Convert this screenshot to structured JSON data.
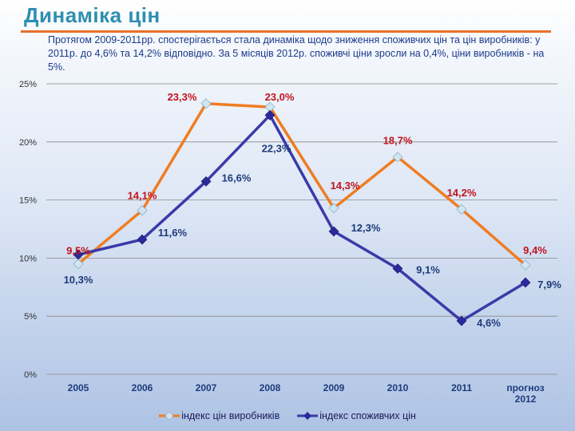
{
  "header": {
    "title": "Динаміка цін",
    "description": "Протягом 2009-2011рр. спостерігається стала динаміка щодо зниження споживчих цін та цін виробників: у 2011р. до 4,6% та 14,2% відповідно. За 5 місяців 2012р. споживчі ціни зросли на 0,4%, ціни виробників - на 5%."
  },
  "colors": {
    "producer": "#ef7d22",
    "producer_marker": "#cfe6f2",
    "producer_label": "#c0141c",
    "consumer": "#3a3aa8",
    "consumer_label": "#1f3a7a",
    "grid": "#8a8a8a"
  },
  "chart_data": {
    "type": "line",
    "categories": [
      "2005",
      "2006",
      "2007",
      "2008",
      "2009",
      "2010",
      "2011",
      "прогноз 2012"
    ],
    "ylim": [
      0,
      25
    ],
    "yticks": [
      "0%",
      "5%",
      "10%",
      "15%",
      "20%",
      "25%"
    ],
    "grid": true,
    "legend": "bottom",
    "series": [
      {
        "name": "індекс  цін виробників",
        "values": [
          9.5,
          14.1,
          23.3,
          23.0,
          14.3,
          18.7,
          14.2,
          9.4
        ],
        "labels": [
          "9,5%",
          "14,1%",
          "23,3%",
          "23,0%",
          "14,3%",
          "18,7%",
          "14,2%",
          "9,4%"
        ]
      },
      {
        "name": "індекс споживчих цін",
        "values": [
          10.3,
          11.6,
          16.6,
          22.3,
          12.3,
          9.1,
          4.6,
          7.9
        ],
        "labels": [
          "10,3%",
          "11,6%",
          "16,6%",
          "22,3%",
          "12,3%",
          "9,1%",
          "4,6%",
          "7,9%"
        ]
      }
    ]
  }
}
